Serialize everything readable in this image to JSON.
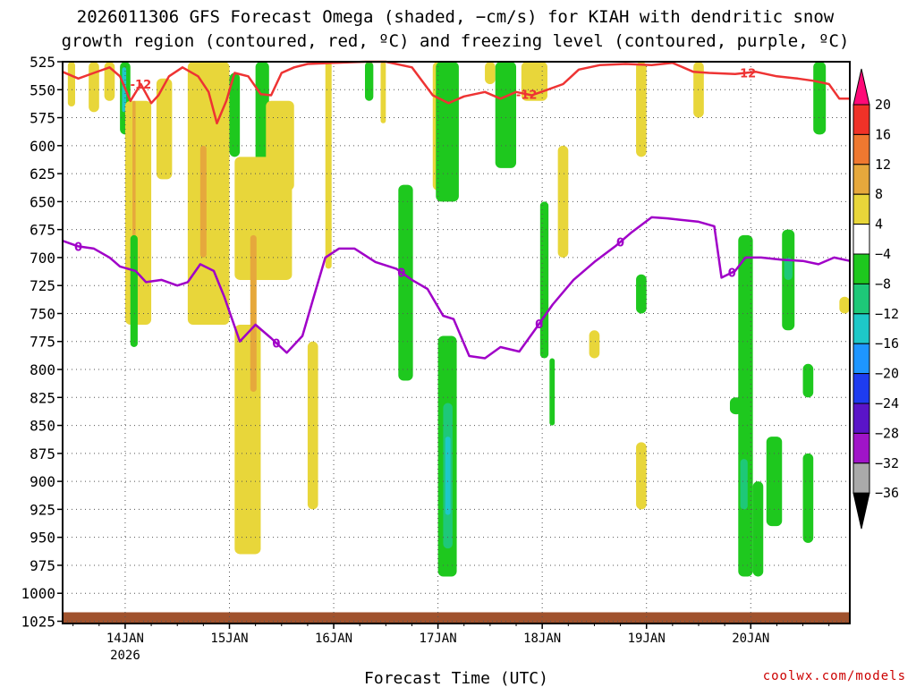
{
  "chart_data": {
    "type": "heatmap",
    "title_line1": "2026011306 GFS Forecast Omega (shaded, −cm/s) for KIAH with dendritic snow",
    "title_line2": "growth region (contoured, red, ºC) and freezing level (contoured, purple, ºC)",
    "xlabel": "Forecast Time (UTC)",
    "credit": "coolwx.com/models",
    "pressure_levels": [
      525,
      550,
      575,
      600,
      625,
      650,
      675,
      700,
      725,
      750,
      775,
      800,
      825,
      850,
      875,
      900,
      925,
      950,
      975,
      1000,
      1025
    ],
    "ylim": [
      525,
      1027
    ],
    "x_range_days": [
      -0.6,
      6.95
    ],
    "x_ticks": [
      {
        "label": "14JAN",
        "day": 0,
        "sub": "2026"
      },
      {
        "label": "15JAN",
        "day": 1,
        "sub": ""
      },
      {
        "label": "16JAN",
        "day": 2,
        "sub": ""
      },
      {
        "label": "17JAN",
        "day": 3,
        "sub": ""
      },
      {
        "label": "18JAN",
        "day": 4,
        "sub": ""
      },
      {
        "label": "19JAN",
        "day": 5,
        "sub": ""
      },
      {
        "label": "20JAN",
        "day": 6,
        "sub": ""
      }
    ],
    "colorbar": {
      "labels": [
        "20",
        "16",
        "12",
        "8",
        "4",
        "−4",
        "−8",
        "−12",
        "−16",
        "−20",
        "−24",
        "−28",
        "−32",
        "−36"
      ],
      "colors": [
        "#ff0a78",
        "#f03228",
        "#ef7830",
        "#e6a83c",
        "#e8d63a",
        "#ffffff",
        "#1ec81e",
        "#1ec878",
        "#1ec8c8",
        "#1e96ff",
        "#1e3cf0",
        "#5a14c8",
        "#a014c8",
        "#aaaaaa",
        "#000000"
      ]
    },
    "contour_freezing_level": {
      "label": "0",
      "color": "#a000c8",
      "points": [
        [
          -0.6,
          685
        ],
        [
          -0.45,
          690
        ],
        [
          -0.3,
          692
        ],
        [
          -0.15,
          700
        ],
        [
          -0.05,
          708
        ],
        [
          0.1,
          712
        ],
        [
          0.2,
          722
        ],
        [
          0.35,
          720
        ],
        [
          0.5,
          725
        ],
        [
          0.6,
          722
        ],
        [
          0.72,
          706
        ],
        [
          0.85,
          712
        ],
        [
          0.95,
          735
        ],
        [
          1.1,
          775
        ],
        [
          1.25,
          760
        ],
        [
          1.4,
          772
        ],
        [
          1.55,
          785
        ],
        [
          1.7,
          770
        ],
        [
          1.8,
          738
        ],
        [
          1.92,
          700
        ],
        [
          2.05,
          692
        ],
        [
          2.2,
          692
        ],
        [
          2.4,
          704
        ],
        [
          2.6,
          710
        ],
        [
          2.75,
          720
        ],
        [
          2.9,
          728
        ],
        [
          3.05,
          752
        ],
        [
          3.15,
          755
        ],
        [
          3.3,
          788
        ],
        [
          3.45,
          790
        ],
        [
          3.6,
          780
        ],
        [
          3.78,
          784
        ],
        [
          3.95,
          762
        ],
        [
          4.1,
          742
        ],
        [
          4.3,
          720
        ],
        [
          4.5,
          704
        ],
        [
          4.7,
          690
        ],
        [
          4.85,
          678
        ],
        [
          5.05,
          664
        ],
        [
          5.2,
          665
        ],
        [
          5.5,
          668
        ],
        [
          5.65,
          672
        ],
        [
          5.72,
          718
        ],
        [
          5.85,
          712
        ],
        [
          5.95,
          700
        ],
        [
          6.1,
          700
        ],
        [
          6.3,
          702
        ],
        [
          6.5,
          703
        ],
        [
          6.65,
          706
        ],
        [
          6.8,
          700
        ],
        [
          6.95,
          703
        ]
      ],
      "label_days": [
        -0.45,
        1.45,
        2.65,
        3.97,
        4.75,
        5.82
      ]
    },
    "contour_dgz": {
      "label": "-12",
      "color": "#ee3333",
      "points": [
        [
          -0.6,
          534
        ],
        [
          -0.45,
          540
        ],
        [
          -0.3,
          535
        ],
        [
          -0.15,
          530
        ],
        [
          -0.05,
          538
        ],
        [
          0.05,
          560
        ],
        [
          0.15,
          545
        ],
        [
          0.25,
          562
        ],
        [
          0.32,
          555
        ],
        [
          0.42,
          538
        ],
        [
          0.55,
          530
        ],
        [
          0.7,
          538
        ],
        [
          0.8,
          552
        ],
        [
          0.88,
          580
        ],
        [
          0.97,
          560
        ],
        [
          1.05,
          535
        ],
        [
          1.18,
          538
        ],
        [
          1.3,
          554
        ],
        [
          1.4,
          555
        ],
        [
          1.5,
          535
        ],
        [
          1.62,
          530
        ],
        [
          1.75,
          527
        ],
        [
          2.0,
          526
        ],
        [
          2.3,
          525
        ],
        [
          2.5,
          525
        ],
        [
          2.75,
          530
        ],
        [
          2.95,
          555
        ],
        [
          3.1,
          562
        ],
        [
          3.25,
          556
        ],
        [
          3.45,
          552
        ],
        [
          3.6,
          558
        ],
        [
          3.75,
          552
        ],
        [
          3.9,
          555
        ],
        [
          4.05,
          550
        ],
        [
          4.2,
          545
        ],
        [
          4.35,
          532
        ],
        [
          4.55,
          528
        ],
        [
          4.8,
          527
        ],
        [
          5.05,
          528
        ],
        [
          5.25,
          526
        ],
        [
          5.45,
          534
        ],
        [
          5.6,
          535
        ],
        [
          5.85,
          536
        ],
        [
          6.05,
          534
        ],
        [
          6.25,
          538
        ],
        [
          6.45,
          540
        ],
        [
          6.6,
          542
        ],
        [
          6.75,
          545
        ],
        [
          6.85,
          558
        ],
        [
          6.95,
          558
        ]
      ],
      "label_days": [
        0.15,
        3.85,
        5.95
      ]
    },
    "shaded_regions": [
      {
        "color": "#e8d63a",
        "x": [
          -0.55,
          -0.48
        ],
        "p": [
          525,
          565
        ]
      },
      {
        "color": "#e8d63a",
        "x": [
          -0.35,
          -0.25
        ],
        "p": [
          525,
          570
        ]
      },
      {
        "color": "#e8d63a",
        "x": [
          -0.2,
          -0.1
        ],
        "p": [
          525,
          560
        ]
      },
      {
        "color": "#1ec81e",
        "x": [
          -0.05,
          0.05
        ],
        "p": [
          525,
          590
        ]
      },
      {
        "color": "#1ec8c8",
        "x": [
          -0.03,
          0.01
        ],
        "p": [
          530,
          570
        ]
      },
      {
        "color": "#e8d63a",
        "x": [
          0.0,
          0.25
        ],
        "p": [
          560,
          760
        ]
      },
      {
        "color": "#e6a83c",
        "x": [
          0.07,
          0.1
        ],
        "p": [
          560,
          700
        ]
      },
      {
        "color": "#1ec81e",
        "x": [
          0.05,
          0.12
        ],
        "p": [
          680,
          780
        ]
      },
      {
        "color": "#e8d63a",
        "x": [
          0.3,
          0.45
        ],
        "p": [
          540,
          630
        ]
      },
      {
        "color": "#e8d63a",
        "x": [
          0.6,
          1.0
        ],
        "p": [
          525,
          760
        ]
      },
      {
        "color": "#e6a83c",
        "x": [
          0.72,
          0.78
        ],
        "p": [
          600,
          700
        ]
      },
      {
        "color": "#1ec81e",
        "x": [
          1.0,
          1.1
        ],
        "p": [
          535,
          610
        ]
      },
      {
        "color": "#1ec81e",
        "x": [
          1.25,
          1.38
        ],
        "p": [
          525,
          620
        ]
      },
      {
        "color": "#e8d63a",
        "x": [
          1.05,
          1.6
        ],
        "p": [
          610,
          720
        ]
      },
      {
        "color": "#e8d63a",
        "x": [
          1.35,
          1.62
        ],
        "p": [
          560,
          640
        ]
      },
      {
        "color": "#e8d63a",
        "x": [
          1.05,
          1.3
        ],
        "p": [
          760,
          965
        ]
      },
      {
        "color": "#e6a83c",
        "x": [
          1.2,
          1.26
        ],
        "p": [
          680,
          820
        ]
      },
      {
        "color": "#e8d63a",
        "x": [
          1.75,
          1.85
        ],
        "p": [
          775,
          925
        ]
      },
      {
        "color": "#e8d63a",
        "x": [
          1.92,
          1.98
        ],
        "p": [
          525,
          710
        ]
      },
      {
        "color": "#1ec81e",
        "x": [
          2.3,
          2.38
        ],
        "p": [
          525,
          560
        ]
      },
      {
        "color": "#e8d63a",
        "x": [
          2.45,
          2.5
        ],
        "p": [
          525,
          580
        ]
      },
      {
        "color": "#1ec81e",
        "x": [
          2.62,
          2.76
        ],
        "p": [
          635,
          810
        ]
      },
      {
        "color": "#e8d63a",
        "x": [
          2.95,
          3.05
        ],
        "p": [
          525,
          640
        ]
      },
      {
        "color": "#1ec81e",
        "x": [
          2.98,
          3.2
        ],
        "p": [
          525,
          650
        ]
      },
      {
        "color": "#1ec81e",
        "x": [
          3.0,
          3.18
        ],
        "p": [
          770,
          985
        ]
      },
      {
        "color": "#1ec878",
        "x": [
          3.05,
          3.14
        ],
        "p": [
          830,
          960
        ]
      },
      {
        "color": "#1ec8c8",
        "x": [
          3.07,
          3.12
        ],
        "p": [
          860,
          930
        ]
      },
      {
        "color": "#e8d63a",
        "x": [
          3.45,
          3.55
        ],
        "p": [
          525,
          545
        ]
      },
      {
        "color": "#1ec81e",
        "x": [
          3.55,
          3.75
        ],
        "p": [
          525,
          620
        ]
      },
      {
        "color": "#e8d63a",
        "x": [
          3.8,
          4.05
        ],
        "p": [
          525,
          560
        ]
      },
      {
        "color": "#1ec81e",
        "x": [
          3.98,
          4.06
        ],
        "p": [
          650,
          790
        ]
      },
      {
        "color": "#1ec81e",
        "x": [
          4.07,
          4.12
        ],
        "p": [
          790,
          850
        ]
      },
      {
        "color": "#e8d63a",
        "x": [
          4.15,
          4.25
        ],
        "p": [
          600,
          700
        ]
      },
      {
        "color": "#e8d63a",
        "x": [
          4.45,
          4.55
        ],
        "p": [
          765,
          790
        ]
      },
      {
        "color": "#e8d63a",
        "x": [
          4.9,
          5.0
        ],
        "p": [
          525,
          610
        ]
      },
      {
        "color": "#1ec81e",
        "x": [
          4.9,
          5.0
        ],
        "p": [
          715,
          750
        ]
      },
      {
        "color": "#e8d63a",
        "x": [
          4.9,
          5.0
        ],
        "p": [
          865,
          925
        ]
      },
      {
        "color": "#e8d63a",
        "x": [
          5.45,
          5.55
        ],
        "p": [
          525,
          575
        ]
      },
      {
        "color": "#1ec81e",
        "x": [
          5.8,
          5.92
        ],
        "p": [
          825,
          840
        ]
      },
      {
        "color": "#1ec81e",
        "x": [
          5.88,
          6.02
        ],
        "p": [
          680,
          985
        ]
      },
      {
        "color": "#1ec878",
        "x": [
          5.9,
          5.97
        ],
        "p": [
          880,
          925
        ]
      },
      {
        "color": "#1ec81e",
        "x": [
          6.02,
          6.12
        ],
        "p": [
          900,
          985
        ]
      },
      {
        "color": "#1ec81e",
        "x": [
          6.15,
          6.3
        ],
        "p": [
          860,
          940
        ]
      },
      {
        "color": "#1ec81e",
        "x": [
          6.3,
          6.42
        ],
        "p": [
          675,
          765
        ]
      },
      {
        "color": "#1ec878",
        "x": [
          6.32,
          6.4
        ],
        "p": [
          700,
          720
        ]
      },
      {
        "color": "#1ec81e",
        "x": [
          6.5,
          6.6
        ],
        "p": [
          795,
          825
        ]
      },
      {
        "color": "#1ec81e",
        "x": [
          6.5,
          6.6
        ],
        "p": [
          875,
          955
        ]
      },
      {
        "color": "#1ec81e",
        "x": [
          6.6,
          6.72
        ],
        "p": [
          525,
          590
        ]
      },
      {
        "color": "#e8d63a",
        "x": [
          6.85,
          6.95
        ],
        "p": [
          735,
          750
        ]
      }
    ]
  }
}
